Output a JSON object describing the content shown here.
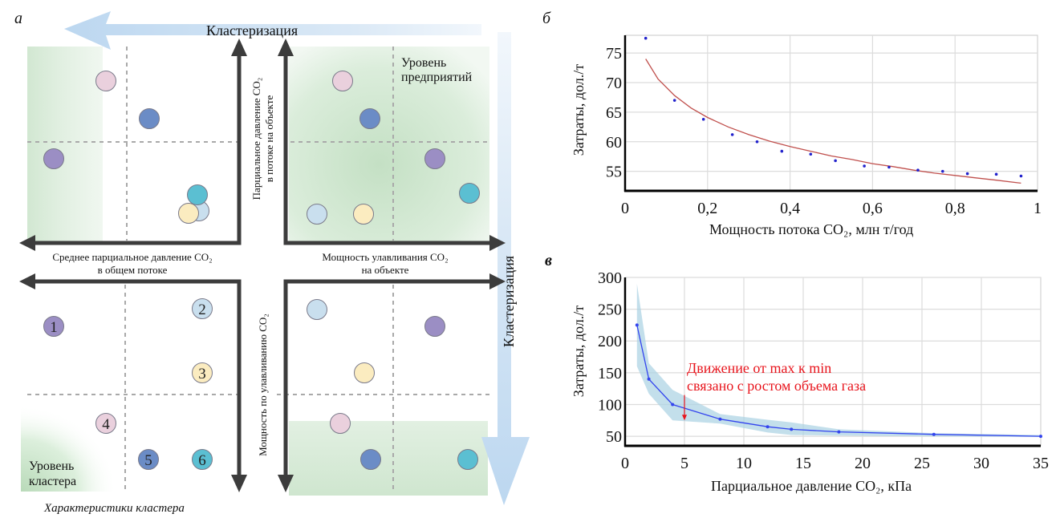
{
  "panel_a": {
    "letter": "а",
    "top_arrow_label": "Кластеризация",
    "right_arrow_label": "Кластеризация",
    "enterprise_level_label": [
      "Уровень",
      "предприятий"
    ],
    "cluster_level_label": [
      "Уровень",
      "кластера"
    ],
    "caption": "Характеристики кластера",
    "axis_left_horizontal": [
      "Среднее парциальное давление CO₂",
      "в общем потоке"
    ],
    "axis_right_horizontal": [
      "Мощность улавливания CO₂",
      "на объекте"
    ],
    "axis_top_vertical": [
      "Парциальное давление CO₂",
      "в потоке на объекте"
    ],
    "axis_bottom_vertical": "Мощность по улавливанию CO₂",
    "colors": {
      "purple": "#9b8ec4",
      "light_blue": "#c9dfee",
      "yellow": "#fbecc0",
      "pink": "#ead0dd",
      "blue": "#6b8cc6",
      "teal": "#5bbfd2",
      "green_zone": "#cfe6cf",
      "arrow_blue": "#cfe2f4",
      "axis_dark": "#3c3c3c"
    },
    "quadrant_top_left": [
      {
        "color": "pink",
        "label": ""
      },
      {
        "color": "blue",
        "label": ""
      },
      {
        "color": "purple",
        "label": ""
      },
      {
        "color": "light_blue",
        "label": ""
      },
      {
        "color": "yellow",
        "label": ""
      },
      {
        "color": "teal",
        "label": ""
      }
    ],
    "quadrant_top_right": [
      {
        "color": "pink",
        "label": ""
      },
      {
        "color": "blue",
        "label": ""
      },
      {
        "color": "purple",
        "label": ""
      },
      {
        "color": "teal",
        "label": ""
      },
      {
        "color": "light_blue",
        "label": ""
      },
      {
        "color": "yellow",
        "label": ""
      }
    ],
    "quadrant_bottom_left": [
      {
        "color": "purple",
        "label": "1"
      },
      {
        "color": "light_blue",
        "label": "2"
      },
      {
        "color": "yellow",
        "label": "3"
      },
      {
        "color": "pink",
        "label": "4"
      },
      {
        "color": "blue",
        "label": "5"
      },
      {
        "color": "teal",
        "label": "6"
      }
    ],
    "quadrant_bottom_right": [
      {
        "color": "light_blue",
        "label": ""
      },
      {
        "color": "purple",
        "label": ""
      },
      {
        "color": "yellow",
        "label": ""
      },
      {
        "color": "pink",
        "label": ""
      },
      {
        "color": "blue",
        "label": ""
      },
      {
        "color": "teal",
        "label": ""
      }
    ]
  },
  "chart_data": [
    {
      "panel": "б",
      "type": "scatter",
      "title": "",
      "xlabel": "Мощность потока CO₂, млн т/год",
      "ylabel": "Затраты, дол./т",
      "xlim": [
        0,
        1
      ],
      "ylim": [
        51.7,
        78
      ],
      "xticks": [
        0,
        0.2,
        0.4,
        0.6,
        0.8,
        1
      ],
      "xtick_labels": [
        "0",
        "0,2",
        "0,4",
        "0,6",
        "0,8",
        "1"
      ],
      "yticks": [
        55,
        60,
        65,
        70,
        75
      ],
      "ytick_labels": [
        "55",
        "60",
        "65",
        "70",
        "75"
      ],
      "grid": true,
      "series": [
        {
          "name": "points",
          "kind": "scatter",
          "color": "#2222cc",
          "x": [
            0.05,
            0.12,
            0.19,
            0.26,
            0.32,
            0.38,
            0.45,
            0.51,
            0.58,
            0.64,
            0.71,
            0.77,
            0.83,
            0.9,
            0.96
          ],
          "y": [
            77.5,
            67.0,
            63.8,
            61.2,
            60.0,
            58.4,
            57.9,
            56.8,
            55.9,
            55.7,
            55.2,
            55.0,
            54.6,
            54.5,
            54.2
          ]
        },
        {
          "name": "trend",
          "kind": "line",
          "color": "#c0504d",
          "x": [
            0.05,
            0.08,
            0.12,
            0.16,
            0.2,
            0.25,
            0.3,
            0.35,
            0.4,
            0.45,
            0.5,
            0.55,
            0.6,
            0.65,
            0.7,
            0.75,
            0.8,
            0.85,
            0.9,
            0.96
          ],
          "y": [
            74.0,
            70.6,
            67.8,
            65.7,
            64.1,
            62.5,
            61.2,
            60.1,
            59.2,
            58.4,
            57.6,
            57.0,
            56.3,
            55.8,
            55.2,
            54.7,
            54.3,
            53.9,
            53.5,
            53.0
          ]
        }
      ]
    },
    {
      "panel": "в",
      "type": "line",
      "title": "",
      "xlabel": "Парциальное давление CO₂, кПа",
      "ylabel": "Затраты, дол./т",
      "xlim": [
        0,
        35
      ],
      "ylim": [
        35,
        300
      ],
      "xticks": [
        0,
        5,
        10,
        15,
        20,
        25,
        30,
        35
      ],
      "xtick_labels": [
        "0",
        "5",
        "10",
        "15",
        "20",
        "25",
        "30",
        "35"
      ],
      "yticks": [
        50,
        100,
        150,
        200,
        250,
        300
      ],
      "ytick_labels": [
        "50",
        "100",
        "150",
        "200",
        "250",
        "300"
      ],
      "grid": true,
      "series": [
        {
          "name": "mean",
          "kind": "line",
          "color": "#3344ee",
          "x": [
            1,
            2,
            4,
            8,
            12,
            14,
            18,
            26,
            35
          ],
          "y": [
            225,
            140,
            100,
            77,
            65,
            61,
            57,
            53,
            50
          ]
        },
        {
          "name": "range",
          "kind": "band",
          "color": "#a9d2e3",
          "x": [
            1,
            2,
            4,
            8,
            12,
            14,
            18,
            26,
            35
          ],
          "upper": [
            290,
            165,
            123,
            85,
            76,
            72,
            61,
            55,
            52
          ],
          "lower": [
            160,
            117,
            75,
            70,
            56,
            52,
            51,
            50,
            49
          ]
        }
      ],
      "annotation": {
        "text": [
          "Движение от max к min",
          "связано с ростом объема газа"
        ],
        "color": "#e8141c",
        "arrow_x": 5,
        "arrow_from_y": 115,
        "arrow_to_y": 75
      }
    }
  ]
}
